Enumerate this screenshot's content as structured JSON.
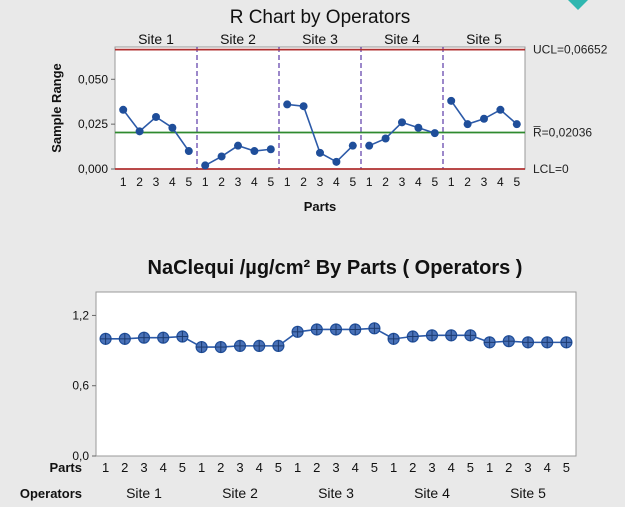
{
  "colors": {
    "accent_corner": "#2fb7b0",
    "marker": "#1f4e9a",
    "marker_line": "#2c5aa8",
    "limit": "#b03030",
    "center": "#2f8a2f",
    "divider": "#5a3aa8"
  },
  "chart_data": [
    {
      "type": "line",
      "title": "R Chart by Operators",
      "xlabel": "Parts",
      "ylabel": "Sample Range",
      "ylim": [
        0,
        0.068
      ],
      "yticks": [
        "0,000",
        "0,025",
        "0,050"
      ],
      "grid": false,
      "groups": [
        "Site 1",
        "Site 2",
        "Site 3",
        "Site 4",
        "Site 5"
      ],
      "categories": [
        "1",
        "2",
        "3",
        "4",
        "5"
      ],
      "values": [
        [
          0.033,
          0.021,
          0.029,
          0.023,
          0.01
        ],
        [
          0.002,
          0.007,
          0.013,
          0.01,
          0.011
        ],
        [
          0.036,
          0.035,
          0.009,
          0.004,
          0.013
        ],
        [
          0.013,
          0.017,
          0.026,
          0.023,
          0.02
        ],
        [
          0.038,
          0.025,
          0.028,
          0.033,
          0.025
        ]
      ],
      "limits": [
        {
          "label": "UCL=0,06652",
          "value": 0.06652,
          "kind": "limit"
        },
        {
          "label": "R̅=0,02036",
          "value": 0.02036,
          "kind": "center"
        },
        {
          "label": "LCL=0",
          "value": 0.0,
          "kind": "limit"
        }
      ]
    },
    {
      "type": "line",
      "title": "NaClequi /µg/cm² By Parts ( Operators )",
      "xlabel_rows": [
        "Parts",
        "Operators"
      ],
      "ylim": [
        0,
        1.4
      ],
      "yticks": [
        "0,0",
        "0,6",
        "1,2"
      ],
      "grid": false,
      "groups": [
        "Site 1",
        "Site 2",
        "Site 3",
        "Site 4",
        "Site 5"
      ],
      "categories": [
        "1",
        "2",
        "3",
        "4",
        "5"
      ],
      "values": [
        [
          1.0,
          1.0,
          1.01,
          1.01,
          1.02
        ],
        [
          0.93,
          0.93,
          0.94,
          0.94,
          0.94
        ],
        [
          1.06,
          1.08,
          1.08,
          1.08,
          1.09
        ],
        [
          1.0,
          1.02,
          1.03,
          1.03,
          1.03
        ],
        [
          0.97,
          0.98,
          0.97,
          0.97,
          0.97
        ]
      ]
    }
  ]
}
